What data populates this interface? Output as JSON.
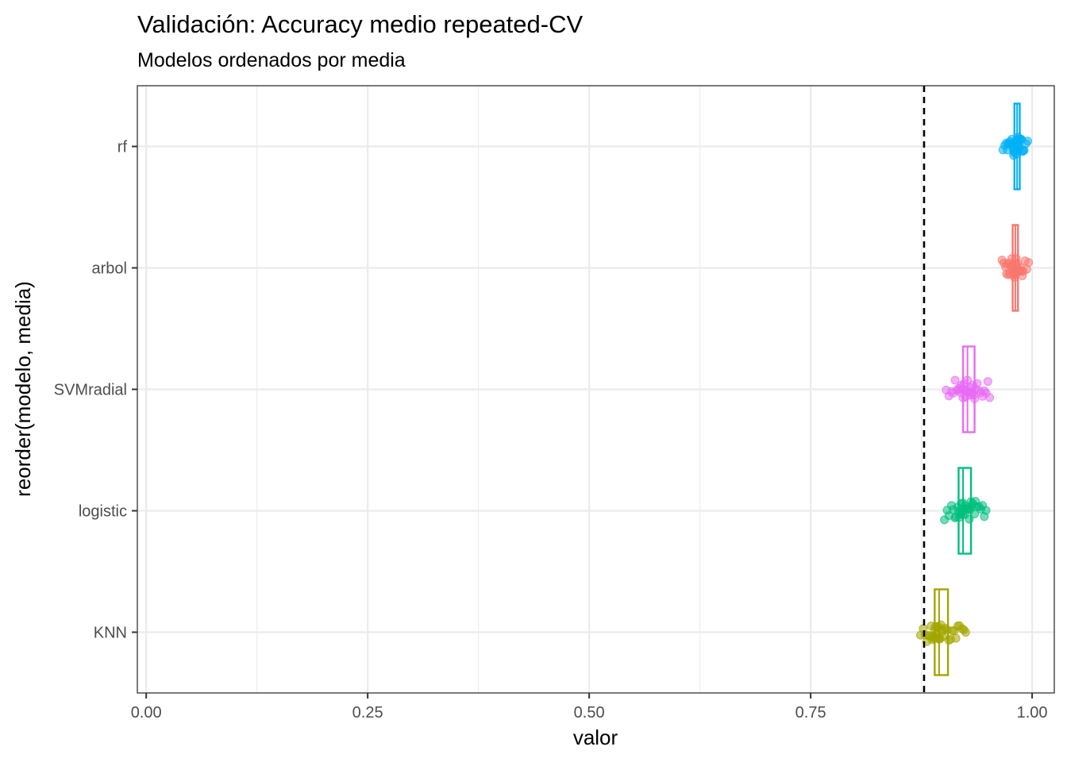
{
  "chart_data": {
    "type": "boxplot-jitter",
    "title": "Validación: Accuracy medio repeated-CV",
    "subtitle": "Modelos ordenados por media",
    "xlabel": "valor",
    "ylabel": "reorder(modelo, media)",
    "xlim": [
      -0.01,
      1.025
    ],
    "x_ticks": [
      0.0,
      0.25,
      0.5,
      0.75,
      1.0
    ],
    "x_tick_labels": [
      "0.00",
      "0.25",
      "0.50",
      "0.75",
      "1.00"
    ],
    "grid": true,
    "reference_line": {
      "x": 0.878,
      "style": "dashed"
    },
    "categories": [
      "KNN",
      "logistic",
      "SVMradial",
      "arbol",
      "rf"
    ],
    "series": [
      {
        "name": "KNN",
        "color": "#A3A500",
        "box": {
          "min": 0.872,
          "q1": 0.89,
          "median": 0.895,
          "q3": 0.905,
          "max": 0.925
        },
        "points": [
          0.874,
          0.877,
          0.879,
          0.881,
          0.883,
          0.884,
          0.886,
          0.887,
          0.888,
          0.889,
          0.889,
          0.89,
          0.891,
          0.891,
          0.892,
          0.893,
          0.894,
          0.894,
          0.895,
          0.896,
          0.897,
          0.898,
          0.899,
          0.9,
          0.902,
          0.904,
          0.906,
          0.908,
          0.91,
          0.912,
          0.914,
          0.916,
          0.918,
          0.921,
          0.923,
          0.925
        ]
      },
      {
        "name": "logistic",
        "color": "#00BF7D",
        "box": {
          "min": 0.9,
          "q1": 0.917,
          "median": 0.922,
          "q3": 0.931,
          "max": 0.949
        },
        "points": [
          0.901,
          0.904,
          0.906,
          0.909,
          0.911,
          0.913,
          0.914,
          0.916,
          0.917,
          0.918,
          0.919,
          0.92,
          0.921,
          0.922,
          0.922,
          0.923,
          0.924,
          0.925,
          0.926,
          0.927,
          0.928,
          0.929,
          0.93,
          0.931,
          0.932,
          0.933,
          0.935,
          0.936,
          0.938,
          0.94,
          0.942,
          0.944,
          0.946,
          0.948
        ]
      },
      {
        "name": "SVMradial",
        "color": "#E76BF3",
        "box": {
          "min": 0.902,
          "q1": 0.922,
          "median": 0.927,
          "q3": 0.935,
          "max": 0.954
        },
        "points": [
          0.903,
          0.906,
          0.909,
          0.911,
          0.913,
          0.915,
          0.917,
          0.918,
          0.919,
          0.92,
          0.921,
          0.922,
          0.923,
          0.924,
          0.925,
          0.926,
          0.927,
          0.928,
          0.929,
          0.93,
          0.931,
          0.932,
          0.933,
          0.934,
          0.935,
          0.936,
          0.938,
          0.94,
          0.942,
          0.944,
          0.946,
          0.948,
          0.95,
          0.952
        ]
      },
      {
        "name": "arbol",
        "color": "#F8766D",
        "box": {
          "min": 0.965,
          "q1": 0.978,
          "median": 0.981,
          "q3": 0.984,
          "max": 0.997
        },
        "points": [
          0.966,
          0.968,
          0.97,
          0.971,
          0.972,
          0.973,
          0.974,
          0.975,
          0.976,
          0.977,
          0.977,
          0.978,
          0.979,
          0.979,
          0.98,
          0.98,
          0.981,
          0.981,
          0.982,
          0.982,
          0.983,
          0.984,
          0.984,
          0.985,
          0.986,
          0.987,
          0.988,
          0.989,
          0.99,
          0.992,
          0.994,
          0.996
        ]
      },
      {
        "name": "rf",
        "color": "#00B0F6",
        "box": {
          "min": 0.966,
          "q1": 0.98,
          "median": 0.983,
          "q3": 0.986,
          "max": 0.995
        },
        "points": [
          0.967,
          0.969,
          0.971,
          0.972,
          0.973,
          0.974,
          0.975,
          0.976,
          0.977,
          0.978,
          0.979,
          0.979,
          0.98,
          0.98,
          0.981,
          0.981,
          0.982,
          0.982,
          0.983,
          0.983,
          0.984,
          0.984,
          0.985,
          0.985,
          0.986,
          0.986,
          0.987,
          0.988,
          0.989,
          0.99,
          0.991,
          0.993,
          0.995
        ]
      }
    ]
  }
}
